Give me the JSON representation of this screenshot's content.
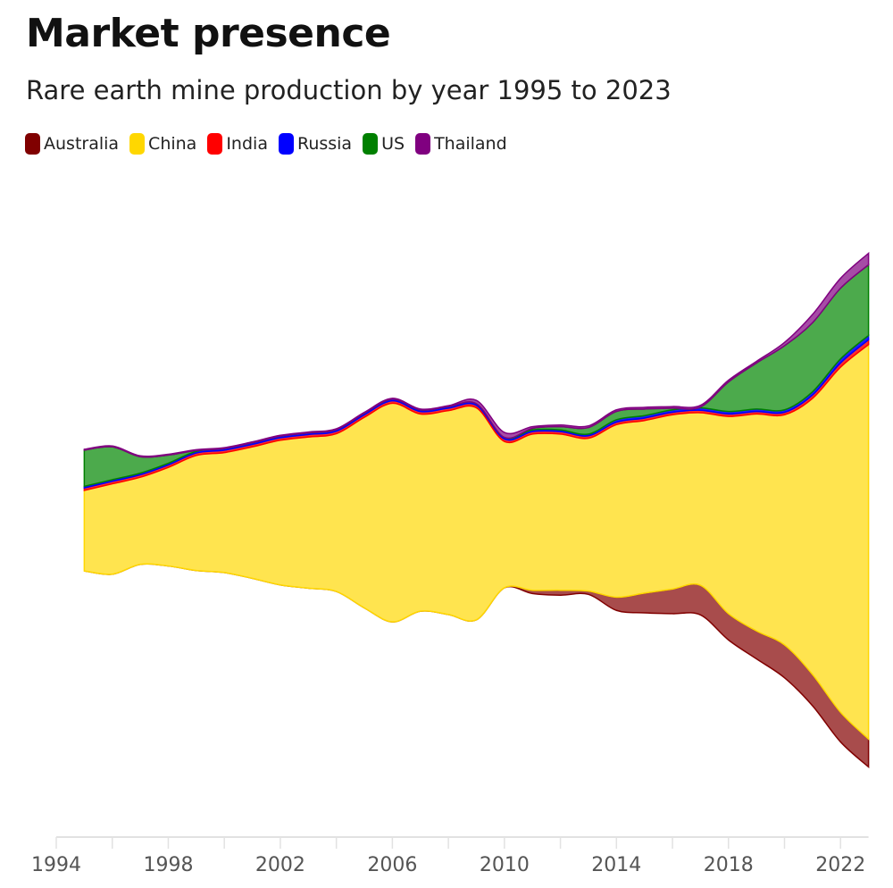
{
  "title": "Market presence",
  "subtitle": "Rare earth mine production by year 1995 to 2023",
  "chart_data": {
    "type": "area",
    "subtype": "streamgraph",
    "title": "Market presence",
    "subtitle": "Rare earth mine production by year 1995 to 2023",
    "legend_position": "top-left",
    "grid": false,
    "x": [
      1995,
      1996,
      1997,
      1998,
      1999,
      2000,
      2001,
      2002,
      2003,
      2004,
      2005,
      2006,
      2007,
      2008,
      2009,
      2010,
      2011,
      2012,
      2013,
      2014,
      2015,
      2016,
      2017,
      2018,
      2019,
      2020,
      2021,
      2022,
      2023
    ],
    "xlim": [
      1994,
      2023
    ],
    "x_ticks": [
      "1994",
      "1998",
      "2002",
      "2006",
      "2010",
      "2014",
      "2018",
      "2022"
    ],
    "series": [
      {
        "name": "Australia",
        "color": "#800000",
        "fill": "#a84c4c",
        "values": [
          0,
          0,
          0,
          0,
          0,
          0,
          0,
          0,
          0,
          0,
          0,
          0,
          0,
          0,
          0,
          0,
          2,
          3,
          2,
          8,
          12,
          15,
          18,
          16,
          17,
          20,
          19,
          18,
          17
        ]
      },
      {
        "name": "China",
        "color": "#ffd700",
        "fill": "#ffe44f",
        "values": [
          49,
          55,
          53,
          60,
          70,
          73,
          80,
          88,
          92,
          96,
          116,
          133,
          120,
          124,
          129,
          89,
          95,
          95,
          93,
          105,
          105,
          106,
          105,
          120,
          132,
          140,
          168,
          210,
          240
        ]
      },
      {
        "name": "India",
        "color": "#ff0000",
        "fill": "#ff3030",
        "values": [
          1.5,
          1.5,
          1.5,
          1.5,
          1.5,
          1.5,
          1.5,
          1.5,
          1.5,
          1.5,
          1.5,
          1.5,
          1.5,
          1.5,
          1.5,
          1.5,
          1.5,
          1.5,
          1.5,
          1.5,
          1.5,
          1.5,
          1.5,
          1.5,
          1.5,
          1.5,
          2,
          2.5,
          2.9
        ]
      },
      {
        "name": "Russia",
        "color": "#0000ff",
        "fill": "#2020ff",
        "values": [
          1,
          1,
          1,
          1,
          1,
          1,
          1,
          1,
          1,
          1,
          1,
          1,
          1,
          1,
          1,
          1,
          1,
          1,
          1,
          1.5,
          1.5,
          1.5,
          1.5,
          1.5,
          1.5,
          1.5,
          2,
          2.5,
          2.6
        ]
      },
      {
        "name": "US",
        "color": "#008000",
        "fill": "#4caa4c",
        "values": [
          22,
          20,
          10,
          5,
          0.5,
          0,
          0,
          0,
          0,
          0,
          0,
          0,
          0,
          0,
          0,
          0,
          1,
          2,
          4,
          5,
          4,
          1,
          0.5,
          18,
          28,
          39,
          42,
          43,
          43
        ]
      },
      {
        "name": "Thailand",
        "color": "#800080",
        "fill": "#a64ca6",
        "values": [
          0.5,
          0.5,
          0.5,
          0.5,
          0.5,
          0.5,
          0.5,
          0.5,
          0.5,
          0.5,
          0.5,
          0.5,
          0.5,
          0.5,
          2,
          3,
          1,
          1,
          1,
          1,
          1,
          1,
          1,
          1,
          1,
          2,
          5,
          6,
          7
        ]
      }
    ]
  }
}
